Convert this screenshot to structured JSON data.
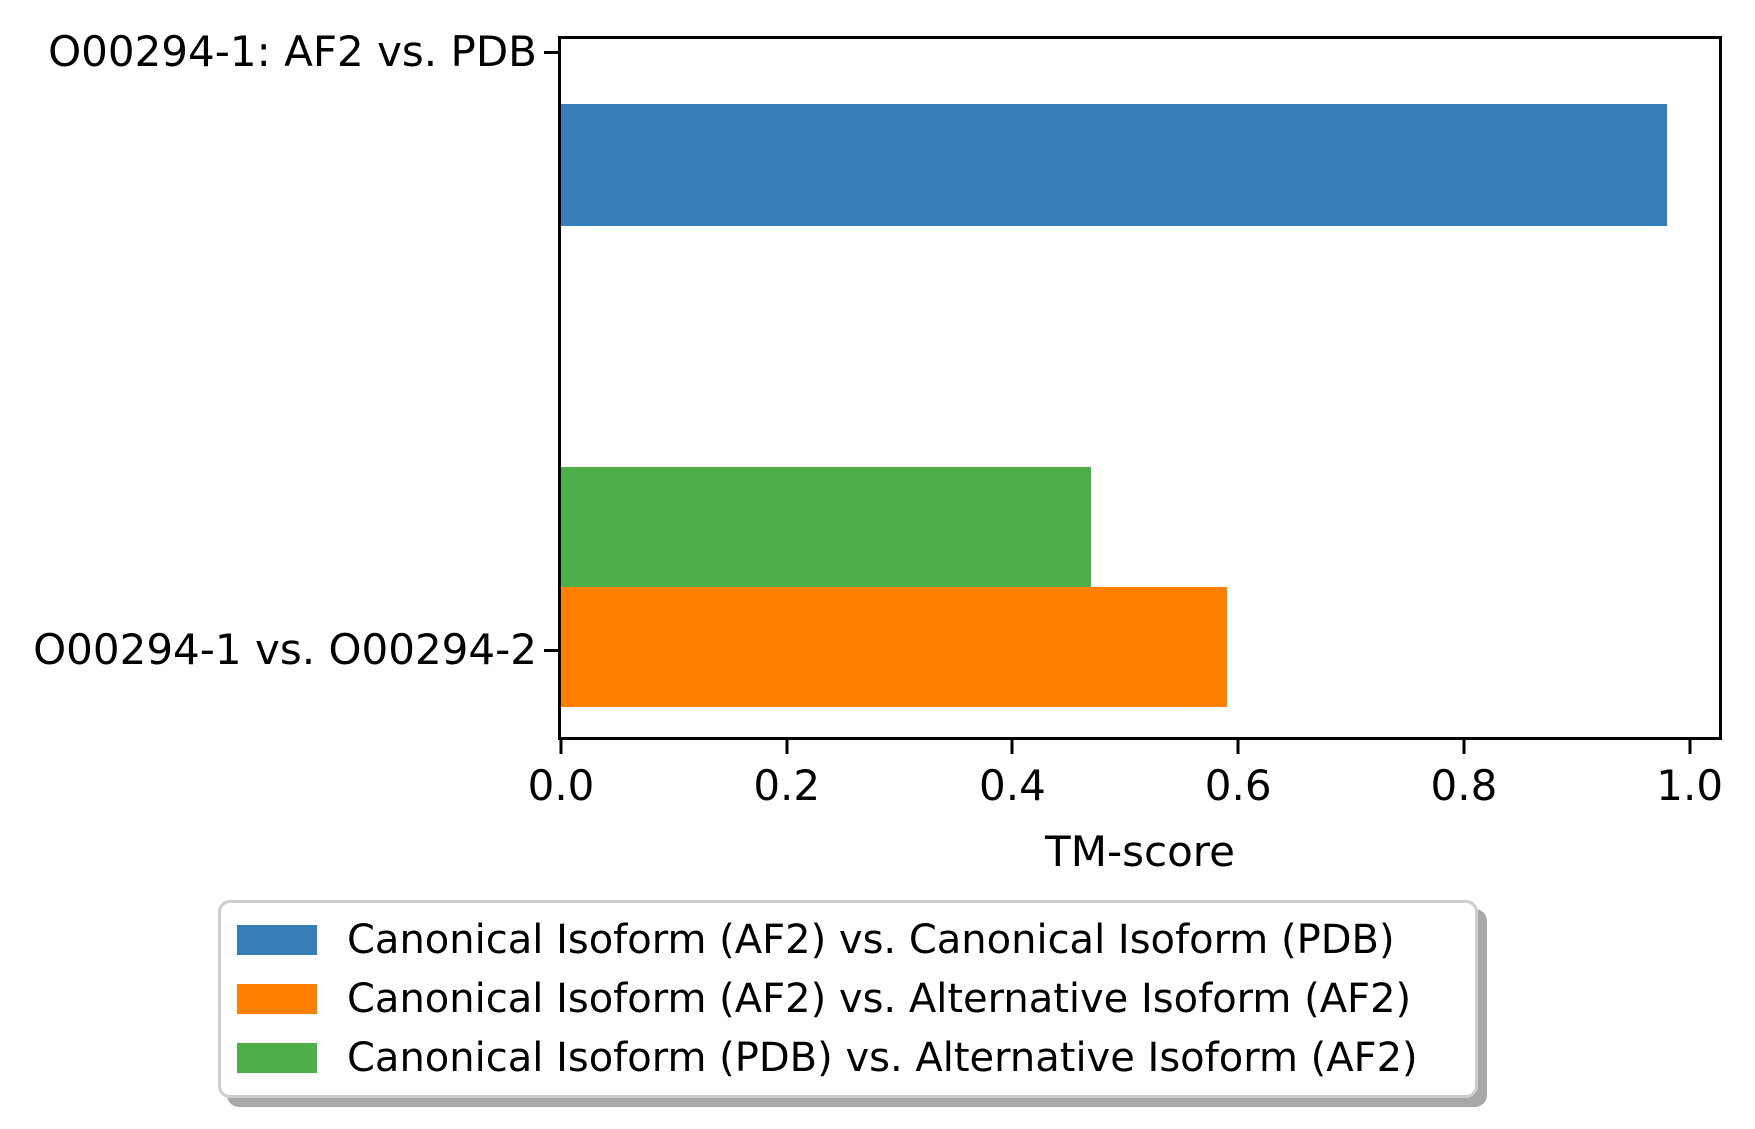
{
  "chart_data": {
    "type": "bar",
    "orientation": "horizontal",
    "title": "",
    "xlabel": "TM-score",
    "ylabel": "",
    "categories": [
      "O00294-1: AF2 vs. PDB",
      "O00294-1 vs. O00294-2"
    ],
    "series": [
      {
        "name": "Canonical Isoform (AF2) vs. Canonical Isoform (PDB)",
        "color": "#377eb8",
        "values": [
          0.98,
          null
        ]
      },
      {
        "name": "Canonical Isoform (AF2) vs. Alternative Isoform (AF2)",
        "color": "#ff7f00",
        "values": [
          null,
          0.59
        ]
      },
      {
        "name": "Canonical Isoform (PDB) vs. Alternative Isoform (AF2)",
        "color": "#4daf4a",
        "values": [
          null,
          0.47
        ]
      }
    ],
    "xlim": [
      0,
      1.026
    ],
    "xticks": [
      "0.0",
      "0.2",
      "0.4",
      "0.6",
      "0.8",
      "1.0"
    ],
    "xtick_values": [
      0.0,
      0.2,
      0.4,
      0.6,
      0.8,
      1.0
    ],
    "grid": false,
    "legend_position": "below-axis"
  },
  "colors": {
    "background": "#ffffff",
    "spine": "#000000",
    "legend_border": "#cccccc",
    "legend_shadow": "#a8a8a8"
  }
}
